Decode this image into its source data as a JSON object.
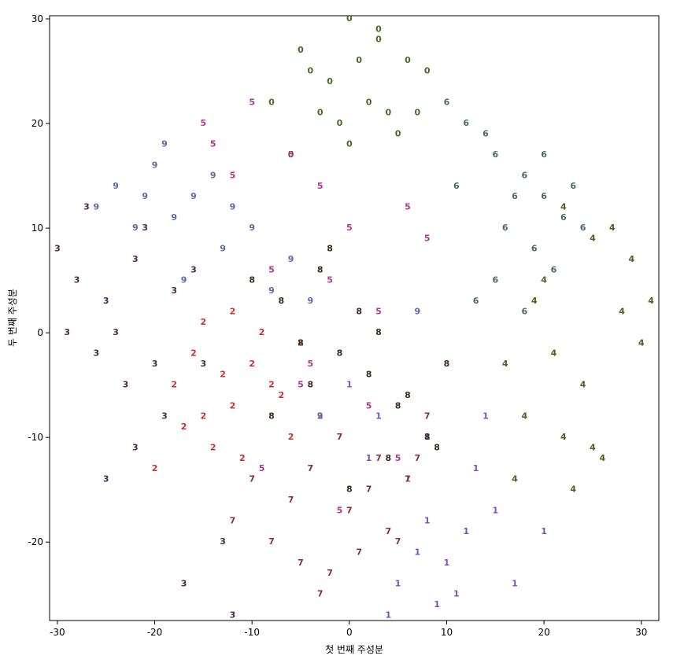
{
  "chart_data": {
    "type": "scatter-text",
    "x_label": "첫 번째 주성분",
    "y_label": "두 번째 주성분",
    "xlim": [
      -30.8,
      31.8
    ],
    "ylim": [
      -27.5,
      30.3
    ],
    "xticks": [
      -30,
      -20,
      -10,
      0,
      10,
      20,
      30
    ],
    "yticks": [
      -20,
      -10,
      0,
      10,
      20,
      30
    ],
    "series": [
      {
        "name": "0",
        "color": "#456b22",
        "x": [
          0,
          -5,
          3,
          -2,
          6,
          -8,
          2,
          8,
          -1,
          5,
          -4,
          1,
          4,
          -6,
          7,
          3,
          -3,
          0
        ],
        "values": [
          30,
          27,
          28,
          24,
          26,
          22,
          22,
          25,
          20,
          19,
          25,
          26,
          21,
          17,
          21,
          29,
          21,
          18
        ]
      },
      {
        "name": "1",
        "color": "#7b4fbf",
        "x": [
          0,
          3,
          6,
          8,
          10,
          12,
          15,
          5,
          9,
          7,
          13,
          17,
          2,
          11,
          4,
          20,
          8,
          14
        ],
        "values": [
          -5,
          -8,
          -14,
          -18,
          -22,
          -19,
          -17,
          -24,
          -26,
          -21,
          -13,
          -24,
          -12,
          -25,
          -27,
          -19,
          -10,
          -8
        ]
      },
      {
        "name": "2",
        "color": "#c83232",
        "x": [
          -18,
          -15,
          -12,
          -10,
          -8,
          -14,
          -6,
          -16,
          -11,
          -9,
          -13,
          -20,
          -17,
          -7,
          -5,
          -12,
          -15,
          -3
        ],
        "values": [
          -5,
          -8,
          -7,
          -3,
          -5,
          -11,
          -10,
          -2,
          -12,
          0,
          -4,
          -13,
          -9,
          -6,
          -1,
          2,
          1,
          -8
        ]
      },
      {
        "name": "3",
        "color": "#4a2848",
        "x": [
          -30,
          -28,
          -25,
          -22,
          -24,
          -20,
          -26,
          -18,
          -23,
          -21,
          -27,
          -16,
          -19,
          -25,
          -22,
          -13,
          -17,
          -15,
          -12,
          -29
        ],
        "values": [
          8,
          5,
          3,
          7,
          0,
          -3,
          -2,
          4,
          -5,
          10,
          12,
          6,
          -8,
          -14,
          -11,
          -20,
          -24,
          -3,
          -27,
          0
        ]
      },
      {
        "name": "4",
        "color": "#5a5a22",
        "x": [
          16,
          20,
          22,
          25,
          28,
          30,
          18,
          24,
          26,
          21,
          19,
          27,
          29,
          23,
          17,
          31,
          22,
          25
        ],
        "values": [
          -3,
          5,
          12,
          9,
          2,
          -1,
          -8,
          -5,
          -12,
          -2,
          3,
          10,
          7,
          -15,
          -14,
          3,
          -10,
          -11
        ]
      },
      {
        "name": "5",
        "color": "#b0388a",
        "x": [
          -15,
          -10,
          -6,
          -12,
          -3,
          0,
          3,
          8,
          -8,
          -5,
          2,
          -14,
          5,
          -1,
          -9,
          -4,
          -2,
          6
        ],
        "values": [
          20,
          22,
          17,
          15,
          14,
          10,
          2,
          9,
          6,
          -5,
          -7,
          18,
          -12,
          -17,
          -13,
          -3,
          5,
          12
        ]
      },
      {
        "name": "6",
        "color": "#4b6a62",
        "x": [
          10,
          12,
          15,
          18,
          20,
          22,
          17,
          14,
          19,
          21,
          11,
          16,
          13,
          24,
          18,
          20,
          15,
          23
        ],
        "values": [
          22,
          20,
          17,
          15,
          13,
          11,
          13,
          19,
          8,
          6,
          14,
          10,
          3,
          10,
          2,
          17,
          5,
          14
        ]
      },
      {
        "name": "7",
        "color": "#8a2c3c",
        "x": [
          -12,
          -8,
          -5,
          -2,
          0,
          2,
          4,
          6,
          -10,
          -6,
          -3,
          1,
          3,
          5,
          8,
          -1,
          -4,
          7
        ],
        "values": [
          -18,
          -20,
          -22,
          -23,
          -17,
          -15,
          -19,
          -14,
          -14,
          -16,
          -25,
          -21,
          -12,
          -20,
          -8,
          -10,
          -13,
          -12
        ]
      },
      {
        "name": "8",
        "color": "#3b2c1c",
        "x": [
          -10,
          -7,
          -4,
          -1,
          2,
          5,
          8,
          10,
          -8,
          -2,
          1,
          4,
          -5,
          0,
          3,
          6,
          -3,
          9
        ],
        "values": [
          5,
          3,
          -5,
          -2,
          -4,
          -7,
          -10,
          -3,
          -8,
          8,
          2,
          -12,
          -1,
          -15,
          0,
          -6,
          6,
          -11
        ]
      },
      {
        "name": "9",
        "color": "#5a6aa8",
        "x": [
          -26,
          -24,
          -20,
          -18,
          -16,
          -14,
          -22,
          -19,
          -12,
          -10,
          -17,
          -8,
          -6,
          -4,
          -21,
          -13,
          7,
          -3
        ],
        "values": [
          12,
          14,
          16,
          11,
          13,
          15,
          10,
          18,
          12,
          10,
          5,
          4,
          7,
          3,
          13,
          8,
          2,
          -8
        ]
      }
    ]
  }
}
